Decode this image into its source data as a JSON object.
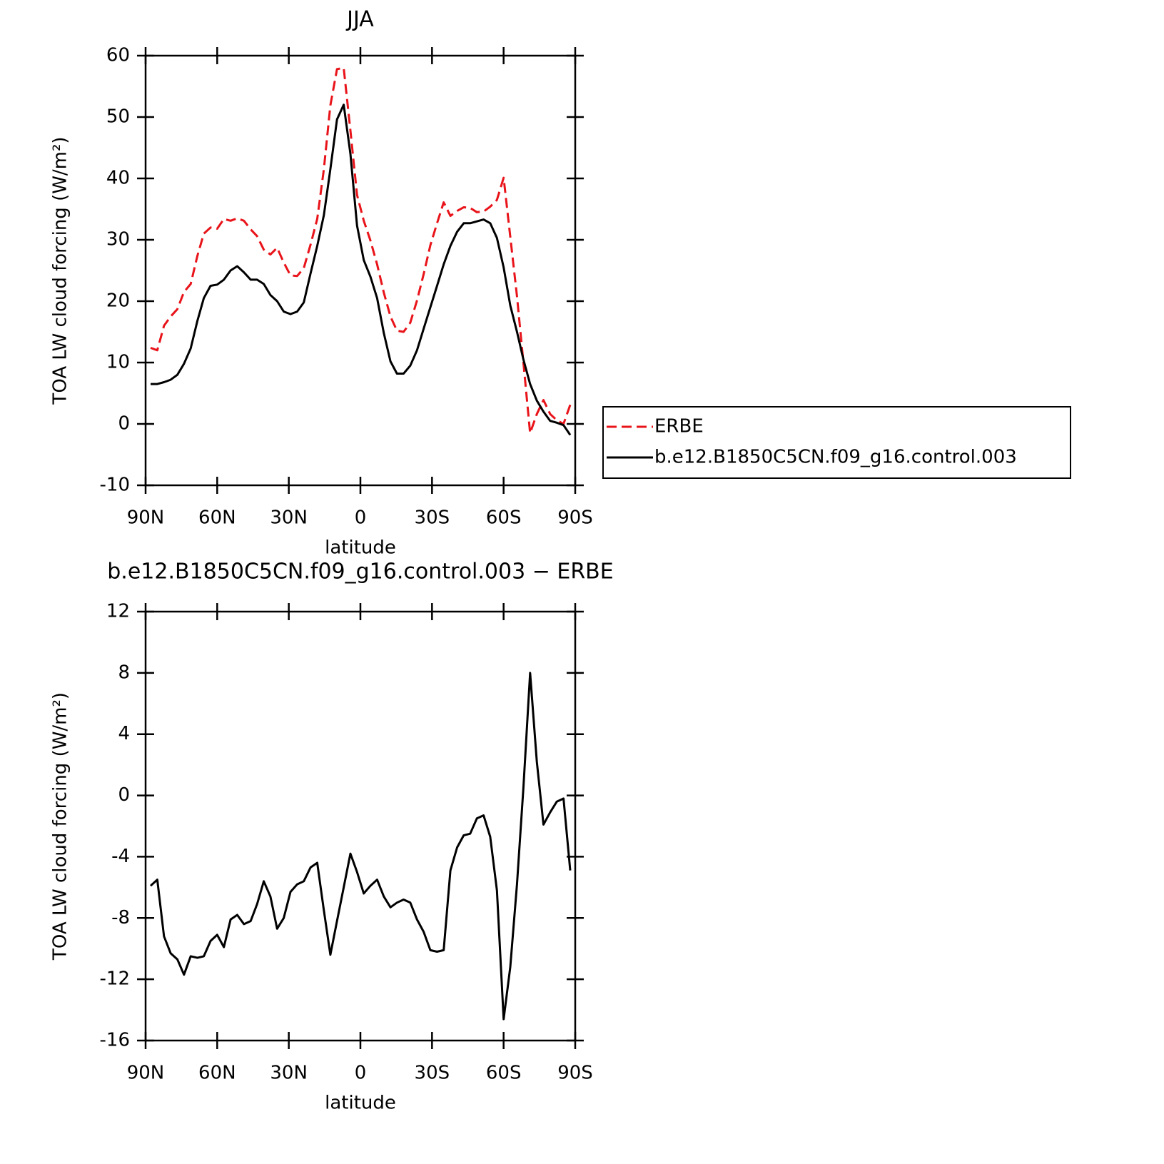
{
  "chart_data": [
    {
      "type": "line",
      "title": "JJA",
      "xlabel": "latitude",
      "ylabel": "TOA LW cloud forcing (W/m²)",
      "x": [
        87.9,
        85.1,
        82.3,
        79.5,
        76.7,
        73.9,
        71.1,
        68.3,
        65.6,
        62.8,
        60.0,
        57.2,
        54.4,
        51.6,
        48.8,
        46.0,
        43.3,
        40.5,
        37.7,
        34.9,
        32.1,
        29.3,
        26.5,
        23.7,
        20.9,
        18.1,
        15.3,
        12.6,
        9.8,
        7.0,
        4.2,
        1.4,
        -1.4,
        -4.2,
        -7.0,
        -9.8,
        -12.6,
        -15.3,
        -18.1,
        -20.9,
        -23.7,
        -26.5,
        -29.3,
        -32.1,
        -34.9,
        -37.7,
        -40.5,
        -43.3,
        -46.0,
        -48.8,
        -51.6,
        -54.4,
        -57.2,
        -60.0,
        -62.8,
        -65.6,
        -68.3,
        -71.1,
        -73.9,
        -76.7,
        -79.5,
        -82.3,
        -85.1,
        -87.9
      ],
      "series": [
        {
          "name": "ERBE",
          "color": "#e8141a",
          "line_style": "dashed",
          "values": [
            12.4,
            12.0,
            16.0,
            17.5,
            18.7,
            21.5,
            22.8,
            27.4,
            31.0,
            32.0,
            31.8,
            33.4,
            33.1,
            33.5,
            33.1,
            31.7,
            30.6,
            28.4,
            27.6,
            28.7,
            26.3,
            24.2,
            24.1,
            25.4,
            29.2,
            33.4,
            41.5,
            51.9,
            57.8,
            58.0,
            47.8,
            37.3,
            33.1,
            29.9,
            26.0,
            21.4,
            17.5,
            15.2,
            15.0,
            16.5,
            20.1,
            24.4,
            29.1,
            32.7,
            36.1,
            33.9,
            34.7,
            35.3,
            35.2,
            34.5,
            34.6,
            35.4,
            36.5,
            40.1,
            30.5,
            20.8,
            10.0,
            -1.5,
            1.6,
            3.9,
            1.6,
            0.6,
            0.0,
            3.1
          ]
        },
        {
          "name": "b.e12.B1850C5CN.f09_g16.control.003",
          "color": "#000000",
          "line_style": "solid",
          "values": [
            6.5,
            6.5,
            6.8,
            7.2,
            8.0,
            9.8,
            12.3,
            16.8,
            20.5,
            22.5,
            22.7,
            23.5,
            25.0,
            25.7,
            24.7,
            23.5,
            23.5,
            22.8,
            21.0,
            20.0,
            18.3,
            17.9,
            18.3,
            19.8,
            24.5,
            29.0,
            34.0,
            41.5,
            49.6,
            52.0,
            44.0,
            32.3,
            26.7,
            24.0,
            20.5,
            14.8,
            10.2,
            8.2,
            8.2,
            9.5,
            12.0,
            15.5,
            19.0,
            22.5,
            26.0,
            29.0,
            31.3,
            32.7,
            32.7,
            33.0,
            33.3,
            32.7,
            30.3,
            25.5,
            19.3,
            15.0,
            10.5,
            6.5,
            3.8,
            2.0,
            0.5,
            0.2,
            -0.2,
            -1.8
          ]
        }
      ],
      "xlim": [
        90,
        -90
      ],
      "xticks": [
        {
          "value": 90,
          "label": "90N"
        },
        {
          "value": 60,
          "label": "60N"
        },
        {
          "value": 30,
          "label": "30N"
        },
        0,
        {
          "value": -30,
          "label": "30S"
        },
        {
          "value": -60,
          "label": "60S"
        },
        {
          "value": -90,
          "label": "90S"
        }
      ],
      "ylim": [
        -10,
        60
      ],
      "yticks": [
        -10,
        0,
        10,
        20,
        30,
        40,
        50,
        60
      ],
      "legend": "right",
      "grid": false
    },
    {
      "type": "line",
      "title": "b.e12.B1850C5CN.f09_g16.control.003 − ERBE",
      "xlabel": "latitude",
      "ylabel": "TOA LW cloud forcing (W/m²)",
      "x": [
        87.9,
        85.1,
        82.3,
        79.5,
        76.7,
        73.9,
        71.1,
        68.3,
        65.6,
        62.8,
        60.0,
        57.2,
        54.4,
        51.6,
        48.8,
        46.0,
        43.3,
        40.5,
        37.7,
        34.9,
        32.1,
        29.3,
        26.5,
        23.7,
        20.9,
        18.1,
        15.3,
        12.6,
        9.8,
        7.0,
        4.2,
        1.4,
        -1.4,
        -4.2,
        -7.0,
        -9.8,
        -12.6,
        -15.3,
        -18.1,
        -20.9,
        -23.7,
        -26.5,
        -29.3,
        -32.1,
        -34.9,
        -37.7,
        -40.5,
        -43.3,
        -46.0,
        -48.8,
        -51.6,
        -54.4,
        -57.2,
        -60.0,
        -62.8,
        -65.6,
        -68.3,
        -71.1,
        -73.9,
        -76.7,
        -79.5,
        -82.3,
        -85.1,
        -87.9
      ],
      "color": "#000000",
      "values": [
        -5.9,
        -5.5,
        -9.2,
        -10.3,
        -10.7,
        -11.7,
        -10.5,
        -10.6,
        -10.5,
        -9.5,
        -9.1,
        -9.9,
        -8.1,
        -7.8,
        -8.4,
        -8.2,
        -7.1,
        -5.6,
        -6.6,
        -8.7,
        -8.0,
        -6.3,
        -5.8,
        -5.6,
        -4.7,
        -4.4,
        -7.5,
        -10.4,
        -8.2,
        -6.0,
        -3.8,
        -5.0,
        -6.4,
        -5.9,
        -5.5,
        -6.6,
        -7.3,
        -7.0,
        -6.8,
        -7.0,
        -8.1,
        -8.9,
        -10.1,
        -10.2,
        -10.1,
        -4.9,
        -3.4,
        -2.6,
        -2.5,
        -1.5,
        -1.3,
        -2.7,
        -6.2,
        -14.6,
        -11.2,
        -5.8,
        0.5,
        8.0,
        2.2,
        -1.9,
        -1.1,
        -0.4,
        -0.2,
        -4.9
      ],
      "xlim": [
        90,
        -90
      ],
      "xticks": [
        {
          "value": 90,
          "label": "90N"
        },
        {
          "value": 60,
          "label": "60N"
        },
        {
          "value": 30,
          "label": "30N"
        },
        0,
        {
          "value": -30,
          "label": "30S"
        },
        {
          "value": -60,
          "label": "60S"
        },
        {
          "value": -90,
          "label": "90S"
        }
      ],
      "ylim": [
        -16,
        12
      ],
      "yticks": [
        -16,
        -12,
        -8,
        -4,
        0,
        4,
        8,
        12
      ],
      "grid": false
    }
  ]
}
